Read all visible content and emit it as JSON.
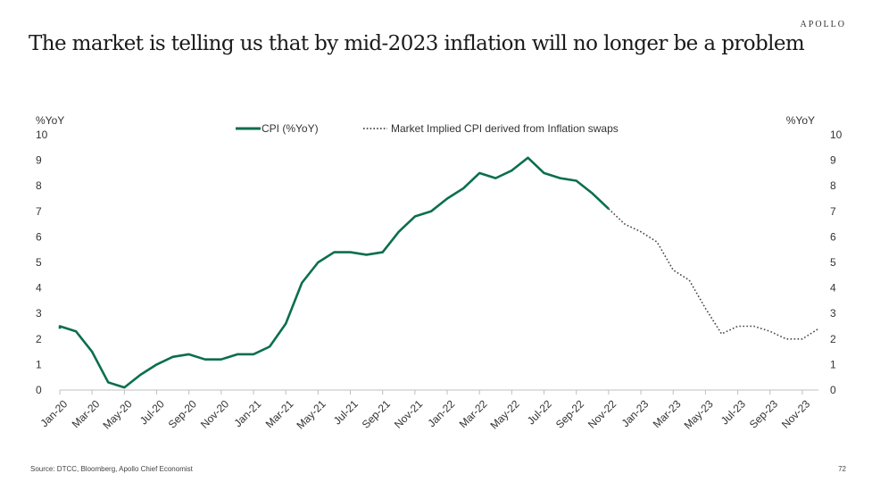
{
  "brand": "APOLLO",
  "title": "The market is telling us that by mid-2023 inflation will no longer be a problem",
  "footer": {
    "source": "Source: DTCC, Bloomberg, Apollo Chief Economist",
    "page": "72"
  },
  "colors": {
    "cpi": "#0b6e4f",
    "implied": "#444444",
    "axis": "#bfbfbf",
    "text": "#333333"
  },
  "chart_data": {
    "type": "line",
    "ylabel_left": "%YoY",
    "ylabel_right": "%YoY",
    "ylim": [
      0,
      10
    ],
    "yticks": [
      0,
      1,
      2,
      3,
      4,
      5,
      6,
      7,
      8,
      9,
      10
    ],
    "x_ticks": [
      "Jan-20",
      "Mar-20",
      "May-20",
      "Jul-20",
      "Sep-20",
      "Nov-20",
      "Jan-21",
      "Mar-21",
      "May-21",
      "Jul-21",
      "Sep-21",
      "Nov-21",
      "Jan-22",
      "Mar-22",
      "May-22",
      "Jul-22",
      "Sep-22",
      "Nov-22",
      "Jan-23",
      "Mar-23",
      "May-23",
      "Jul-23",
      "Sep-23",
      "Nov-23"
    ],
    "legend_position": "top-center",
    "grid": false,
    "series": [
      {
        "name": "CPI (%YoY)",
        "style": "solid",
        "x": [
          "Jan-20",
          "Feb-20",
          "Mar-20",
          "Apr-20",
          "May-20",
          "Jun-20",
          "Jul-20",
          "Aug-20",
          "Sep-20",
          "Oct-20",
          "Nov-20",
          "Dec-20",
          "Jan-21",
          "Feb-21",
          "Mar-21",
          "Apr-21",
          "May-21",
          "Jun-21",
          "Jul-21",
          "Aug-21",
          "Sep-21",
          "Oct-21",
          "Nov-21",
          "Dec-21",
          "Jan-22",
          "Feb-22",
          "Mar-22",
          "Apr-22",
          "May-22",
          "Jun-22",
          "Jul-22",
          "Aug-22",
          "Sep-22",
          "Oct-22",
          "Nov-22"
        ],
        "values": [
          2.5,
          2.3,
          1.5,
          0.3,
          0.1,
          0.6,
          1.0,
          1.3,
          1.4,
          1.2,
          1.2,
          1.4,
          1.4,
          1.7,
          2.6,
          4.2,
          5.0,
          5.4,
          5.4,
          5.3,
          5.4,
          6.2,
          6.8,
          7.0,
          7.5,
          7.9,
          8.5,
          8.3,
          8.6,
          9.1,
          8.5,
          8.3,
          8.2,
          7.7,
          7.1
        ]
      },
      {
        "name": "Market Implied CPI derived from Inflation swaps",
        "style": "dotted",
        "x": [
          "Dec-22",
          "Jan-23",
          "Feb-23",
          "Mar-23",
          "Apr-23",
          "May-23",
          "Jun-23",
          "Jul-23",
          "Aug-23",
          "Sep-23",
          "Oct-23",
          "Nov-23",
          "Dec-23"
        ],
        "values": [
          6.5,
          6.2,
          5.8,
          4.7,
          4.3,
          3.2,
          2.2,
          2.5,
          2.5,
          2.3,
          2.0,
          2.0,
          2.4
        ]
      }
    ]
  }
}
